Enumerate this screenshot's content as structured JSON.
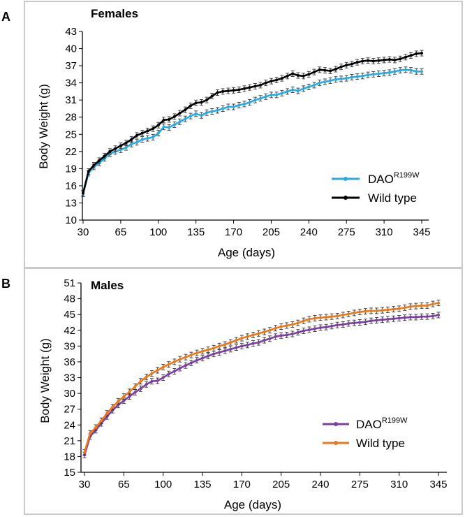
{
  "chart_data": [
    {
      "type": "line",
      "panel": "A",
      "title": "Females",
      "xlabel": "Age (days)",
      "ylabel": "Body Weight (g)",
      "xlim": [
        30,
        350
      ],
      "ylim": [
        10,
        43
      ],
      "x_ticks": [
        30,
        65,
        100,
        135,
        170,
        205,
        240,
        275,
        310,
        345
      ],
      "y_ticks": [
        10,
        13,
        16,
        19,
        22,
        25,
        28,
        31,
        34,
        37,
        40,
        43
      ],
      "legend_position": "bottom-right",
      "series": [
        {
          "name": "DAO",
          "superscript": "R199W",
          "color": "#29abe2",
          "x": [
            30,
            35,
            40,
            45,
            50,
            55,
            60,
            65,
            70,
            75,
            80,
            85,
            90,
            95,
            100,
            105,
            110,
            115,
            120,
            125,
            130,
            135,
            140,
            145,
            150,
            155,
            160,
            165,
            170,
            175,
            180,
            185,
            190,
            195,
            200,
            205,
            210,
            215,
            220,
            225,
            230,
            235,
            240,
            245,
            250,
            255,
            260,
            265,
            270,
            275,
            280,
            285,
            290,
            295,
            300,
            305,
            310,
            315,
            320,
            325,
            330,
            335,
            340,
            345
          ],
          "values": [
            14.6,
            18.2,
            19.3,
            20.0,
            20.8,
            21.6,
            22.0,
            22.3,
            22.7,
            23.3,
            23.6,
            24.1,
            24.3,
            24.5,
            25.2,
            26.3,
            26.2,
            26.7,
            27.2,
            27.7,
            28.2,
            28.6,
            28.3,
            28.8,
            29.0,
            29.2,
            29.5,
            29.8,
            29.8,
            30.1,
            30.3,
            30.6,
            31.0,
            31.3,
            31.6,
            31.9,
            31.9,
            32.2,
            32.5,
            32.8,
            32.6,
            33.0,
            33.3,
            33.6,
            34.0,
            34.2,
            34.4,
            34.6,
            34.7,
            34.8,
            35.0,
            35.1,
            35.2,
            35.4,
            35.5,
            35.6,
            35.7,
            35.8,
            36.0,
            36.2,
            36.3,
            36.2,
            36.0,
            36.0
          ]
        },
        {
          "name": "Wild type",
          "color": "#000000",
          "x": [
            30,
            35,
            40,
            45,
            50,
            55,
            60,
            65,
            70,
            75,
            80,
            85,
            90,
            95,
            100,
            105,
            110,
            115,
            120,
            125,
            130,
            135,
            140,
            145,
            150,
            155,
            160,
            165,
            170,
            175,
            180,
            185,
            190,
            195,
            200,
            205,
            210,
            215,
            220,
            225,
            230,
            235,
            240,
            245,
            250,
            255,
            260,
            265,
            270,
            275,
            280,
            285,
            290,
            295,
            300,
            305,
            310,
            315,
            320,
            325,
            330,
            335,
            340,
            345
          ],
          "values": [
            14.7,
            18.5,
            19.6,
            20.4,
            21.2,
            22.0,
            22.5,
            23.0,
            23.5,
            24.1,
            24.8,
            25.2,
            25.6,
            26.0,
            26.6,
            27.5,
            27.6,
            28.1,
            28.7,
            29.3,
            30.0,
            30.5,
            30.6,
            31.0,
            31.7,
            32.3,
            32.5,
            32.6,
            32.7,
            32.8,
            33.0,
            33.2,
            33.4,
            33.6,
            34.0,
            34.3,
            34.5,
            34.8,
            35.2,
            35.6,
            35.3,
            35.2,
            35.5,
            35.9,
            36.3,
            36.2,
            36.1,
            36.4,
            36.8,
            37.1,
            37.3,
            37.6,
            37.8,
            37.9,
            37.8,
            37.9,
            38.0,
            38.1,
            38.0,
            38.2,
            38.5,
            38.8,
            39.1,
            39.2
          ]
        }
      ]
    },
    {
      "type": "line",
      "panel": "B",
      "title": "Males",
      "xlabel": "Age (days)",
      "ylabel": "Body Weight (g)",
      "xlim": [
        30,
        350
      ],
      "ylim": [
        15,
        51
      ],
      "x_ticks": [
        30,
        65,
        100,
        135,
        170,
        205,
        240,
        275,
        310,
        345
      ],
      "y_ticks": [
        15,
        18,
        21,
        24,
        27,
        30,
        33,
        36,
        39,
        42,
        45,
        48,
        51
      ],
      "legend_position": "bottom-right",
      "series": [
        {
          "name": "DAO",
          "superscript": "R199W",
          "color": "#7b3fa0",
          "x": [
            30,
            35,
            40,
            45,
            50,
            55,
            60,
            65,
            70,
            75,
            80,
            85,
            90,
            95,
            100,
            105,
            110,
            115,
            120,
            125,
            130,
            135,
            140,
            145,
            150,
            155,
            160,
            165,
            170,
            175,
            180,
            185,
            190,
            195,
            200,
            205,
            210,
            215,
            220,
            225,
            230,
            235,
            240,
            245,
            250,
            255,
            260,
            265,
            270,
            275,
            280,
            285,
            290,
            295,
            300,
            305,
            310,
            315,
            320,
            325,
            330,
            335,
            340,
            345
          ],
          "values": [
            18.3,
            21.8,
            23.0,
            24.3,
            25.6,
            26.8,
            27.8,
            28.6,
            29.4,
            30.2,
            30.9,
            31.7,
            32.3,
            32.4,
            33.0,
            33.7,
            34.2,
            34.8,
            35.3,
            35.8,
            36.3,
            36.7,
            37.1,
            37.5,
            37.8,
            38.1,
            38.4,
            38.7,
            39.0,
            39.2,
            39.5,
            39.7,
            40.1,
            40.4,
            40.8,
            41.0,
            41.1,
            41.3,
            41.6,
            41.9,
            42.1,
            42.3,
            42.5,
            42.6,
            42.8,
            43.0,
            43.1,
            43.3,
            43.4,
            43.5,
            43.6,
            43.8,
            43.9,
            44.0,
            44.1,
            44.2,
            44.3,
            44.4,
            44.5,
            44.5,
            44.6,
            44.6,
            44.7,
            44.9
          ]
        },
        {
          "name": "Wild type",
          "color": "#e8791e",
          "x": [
            30,
            35,
            40,
            45,
            50,
            55,
            60,
            65,
            70,
            75,
            80,
            85,
            90,
            95,
            100,
            105,
            110,
            115,
            120,
            125,
            130,
            135,
            140,
            145,
            150,
            155,
            160,
            165,
            170,
            175,
            180,
            185,
            190,
            195,
            200,
            205,
            210,
            215,
            220,
            225,
            230,
            235,
            240,
            245,
            250,
            255,
            260,
            265,
            270,
            275,
            280,
            285,
            290,
            295,
            300,
            305,
            310,
            315,
            320,
            325,
            330,
            335,
            340,
            345
          ],
          "values": [
            18.8,
            22.4,
            23.5,
            24.8,
            26.2,
            27.4,
            28.5,
            29.4,
            30.3,
            31.3,
            32.3,
            33.1,
            33.8,
            34.4,
            35.0,
            35.5,
            36.0,
            36.5,
            36.9,
            37.3,
            37.7,
            38.0,
            38.3,
            38.6,
            39.0,
            39.3,
            39.7,
            40.1,
            40.5,
            40.8,
            41.1,
            41.4,
            41.7,
            42.0,
            42.4,
            42.7,
            42.9,
            43.1,
            43.4,
            43.8,
            44.1,
            44.3,
            44.4,
            44.5,
            44.6,
            44.7,
            44.9,
            45.1,
            45.3,
            45.5,
            45.6,
            45.7,
            45.7,
            45.8,
            45.9,
            46.0,
            46.1,
            46.3,
            46.5,
            46.6,
            46.7,
            46.7,
            47.0,
            47.2
          ]
        }
      ]
    }
  ]
}
